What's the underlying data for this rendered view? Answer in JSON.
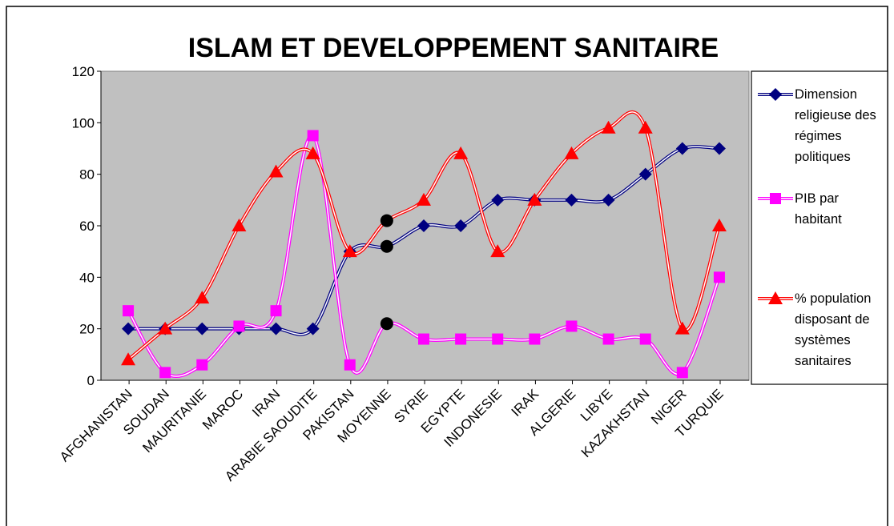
{
  "chart_data": {
    "type": "line",
    "title": "ISLAM ET DEVELOPPEMENT SANITAIRE",
    "categories": [
      "AFGHANISTAN",
      "SOUDAN",
      "MAURITANIE",
      "MAROC",
      "IRAN",
      "ARABIE SAOUDITE",
      "PAKISTAN",
      "MOYENNE",
      "SYRIE",
      "EGYPTE",
      "INDONESIE",
      "IRAK",
      "ALGERIE",
      "LIBYE",
      "KAZAKHSTAN",
      "NIGER",
      "TURQUIE"
    ],
    "series": [
      {
        "name": "Dimension religieuse des régimes politiques",
        "color": "#000080",
        "marker": "diamond",
        "values": [
          20,
          20,
          20,
          20,
          20,
          20,
          50,
          52,
          60,
          60,
          70,
          70,
          70,
          70,
          80,
          90,
          90
        ],
        "point_colors": [
          null,
          null,
          null,
          null,
          null,
          null,
          null,
          "#000000",
          null,
          null,
          null,
          null,
          null,
          null,
          null,
          null,
          null
        ]
      },
      {
        "name": "PIB par habitant",
        "color": "#ff00ff",
        "marker": "square",
        "values": [
          27,
          3,
          6,
          21,
          27,
          95,
          6,
          22,
          16,
          16,
          16,
          16,
          21,
          16,
          16,
          3,
          40
        ],
        "point_colors": [
          null,
          null,
          null,
          null,
          null,
          null,
          null,
          "#000000",
          null,
          null,
          null,
          null,
          null,
          null,
          null,
          null,
          null
        ]
      },
      {
        "name": "% population disposant de systèmes sanitaires",
        "color": "#ff0000",
        "marker": "triangle",
        "values": [
          8,
          20,
          32,
          60,
          81,
          88,
          50,
          62,
          70,
          88,
          50,
          70,
          88,
          98,
          98,
          20,
          60
        ],
        "point_colors": [
          null,
          null,
          null,
          null,
          null,
          null,
          null,
          "#000000",
          null,
          null,
          null,
          null,
          null,
          null,
          null,
          null,
          null
        ]
      }
    ],
    "ylim": [
      0,
      120
    ],
    "yticks": [
      0,
      20,
      40,
      60,
      80,
      100,
      120
    ],
    "grid": false,
    "plot_background": "#c0c0c0",
    "legend": "right"
  }
}
